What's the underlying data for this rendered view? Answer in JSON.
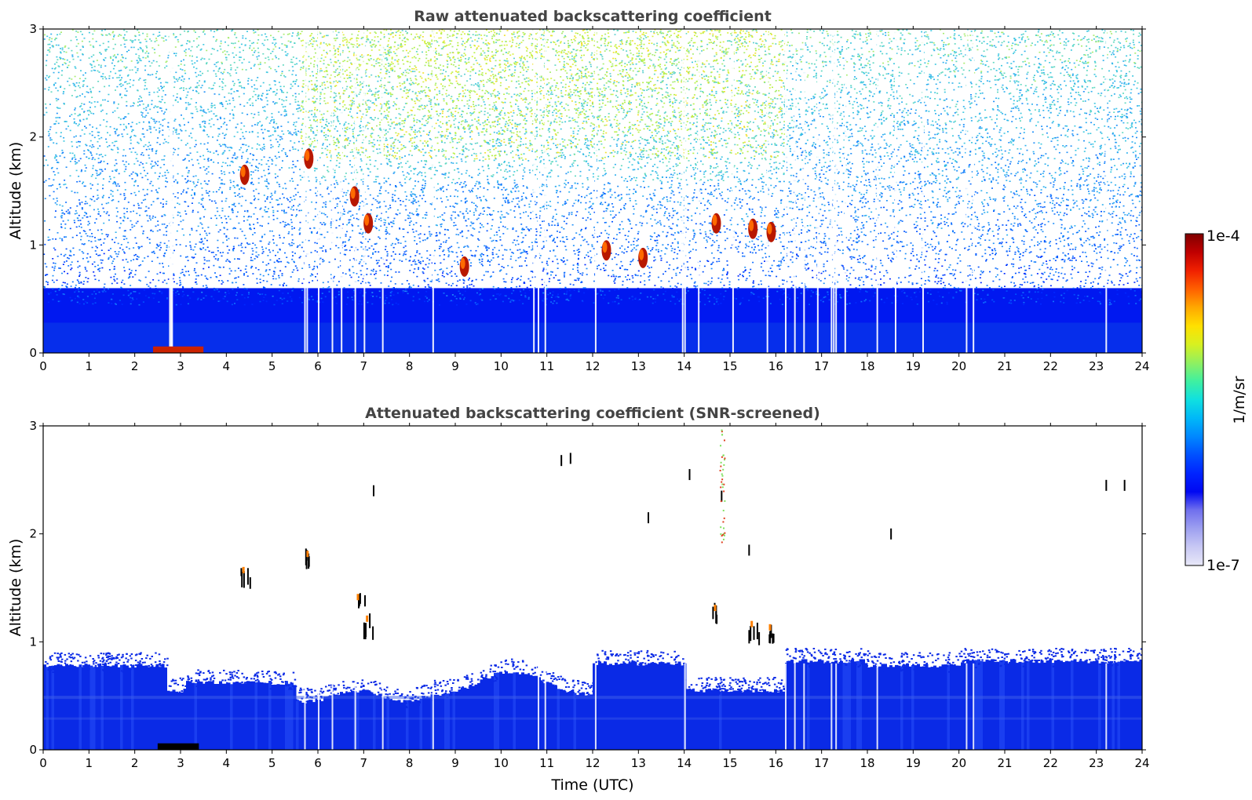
{
  "chart_data": [
    {
      "type": "heatmap",
      "title": "Raw attenuated backscattering coefficient",
      "xlabel": "",
      "ylabel": "Altitude (km)",
      "xlim": [
        0,
        24
      ],
      "ylim": [
        0,
        3
      ],
      "x_ticks": [
        "0",
        "1",
        "2",
        "3",
        "4",
        "5",
        "6",
        "7",
        "8",
        "9",
        "10",
        "11",
        "12",
        "13",
        "14",
        "15",
        "16",
        "17",
        "18",
        "19",
        "20",
        "21",
        "22",
        "23",
        "24"
      ],
      "y_ticks": [
        "0",
        "1",
        "2",
        "3"
      ],
      "grid": false,
      "features": [
        {
          "kind": "dense_low_layer",
          "x": [
            0,
            24
          ],
          "y": [
            0,
            0.6
          ],
          "color": "#0018f0"
        },
        {
          "kind": "noise_field",
          "x": [
            0,
            24
          ],
          "y": [
            0.6,
            3.0
          ],
          "color": "#25a8e8"
        },
        {
          "kind": "high_noise_bursts",
          "x": [
            5.6,
            16.2
          ],
          "y": [
            1.8,
            3.0
          ],
          "color": "#b8f04a"
        },
        {
          "kind": "cloud",
          "x": 4.4,
          "y": 1.65,
          "color": "#b81800"
        },
        {
          "kind": "cloud",
          "x": 5.8,
          "y": 1.8,
          "color": "#b81800"
        },
        {
          "kind": "cloud",
          "x": 6.8,
          "y": 1.45,
          "color": "#b81800"
        },
        {
          "kind": "cloud",
          "x": 7.1,
          "y": 1.2,
          "color": "#b81800"
        },
        {
          "kind": "cloud",
          "x": 9.2,
          "y": 0.8,
          "color": "#b81800"
        },
        {
          "kind": "cloud",
          "x": 12.3,
          "y": 0.95,
          "color": "#b81800"
        },
        {
          "kind": "cloud",
          "x": 13.1,
          "y": 0.88,
          "color": "#b81800"
        },
        {
          "kind": "cloud",
          "x": 14.7,
          "y": 1.2,
          "color": "#b81800"
        },
        {
          "kind": "cloud",
          "x": 15.5,
          "y": 1.15,
          "color": "#b81800"
        },
        {
          "kind": "cloud",
          "x": 15.9,
          "y": 1.12,
          "color": "#b81800"
        },
        {
          "kind": "surface_signal",
          "x": [
            2.4,
            3.5
          ],
          "y": [
            0,
            0.06
          ],
          "color": "#cc2200"
        }
      ]
    },
    {
      "type": "heatmap",
      "title": "Attenuated backscattering coefficient (SNR-screened)",
      "xlabel": "Time (UTC)",
      "ylabel": "Altitude (km)",
      "xlim": [
        0,
        24
      ],
      "ylim": [
        0,
        3
      ],
      "x_ticks": [
        "0",
        "1",
        "2",
        "3",
        "4",
        "5",
        "6",
        "7",
        "8",
        "9",
        "10",
        "11",
        "12",
        "13",
        "14",
        "15",
        "16",
        "17",
        "18",
        "19",
        "20",
        "21",
        "22",
        "23",
        "24"
      ],
      "y_ticks": [
        "0",
        "1",
        "2",
        "3"
      ],
      "grid": false,
      "features": [
        {
          "kind": "screened_boundary_layer",
          "x": [
            0,
            24
          ],
          "y": [
            0,
            0.8
          ],
          "color": "#0a2ae6"
        },
        {
          "kind": "cloud",
          "x": 4.4,
          "y": 1.65,
          "color": "#000000"
        },
        {
          "kind": "cloud",
          "x": 5.8,
          "y": 1.8,
          "color": "#000000"
        },
        {
          "kind": "cloud",
          "x": 6.9,
          "y": 1.4,
          "color": "#000000"
        },
        {
          "kind": "cloud",
          "x": 7.1,
          "y": 1.2,
          "color": "#000000"
        },
        {
          "kind": "cloud",
          "x": 14.7,
          "y": 1.3,
          "color": "#000000"
        },
        {
          "kind": "cloud",
          "x": 15.5,
          "y": 1.15,
          "color": "#000000"
        },
        {
          "kind": "cloud",
          "x": 15.9,
          "y": 1.12,
          "color": "#000000"
        }
      ]
    }
  ],
  "colorbar": {
    "label": "1/m/sr",
    "min_label": "1e-7",
    "max_label": "1e-4",
    "scale": "log",
    "colors": [
      "#e8e8f8",
      "#c8c8f4",
      "#9ea0f0",
      "#7070ee",
      "#0008f2",
      "#0024ff",
      "#0050ff",
      "#0088ff",
      "#00b8f8",
      "#10e0e0",
      "#40f0a0",
      "#90f060",
      "#d8f020",
      "#ffe000",
      "#ffa800",
      "#ff6000",
      "#f02000",
      "#c00000",
      "#800000"
    ]
  }
}
